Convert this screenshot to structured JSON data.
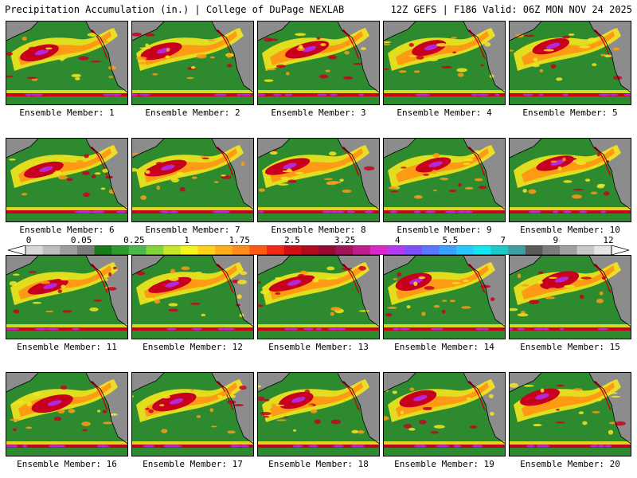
{
  "header": {
    "title": "Precipitation Accumulation (in.) | College of DuPage NEXLAB",
    "run_info": "12Z GEFS | F186 Valid: 06Z MON NOV 24 2025"
  },
  "members": [
    {
      "label": "Ensemble Member: 1"
    },
    {
      "label": "Ensemble Member: 2"
    },
    {
      "label": "Ensemble Member: 3"
    },
    {
      "label": "Ensemble Member: 4"
    },
    {
      "label": "Ensemble Member: 5"
    },
    {
      "label": "Ensemble Member: 6"
    },
    {
      "label": "Ensemble Member: 7"
    },
    {
      "label": "Ensemble Member: 8"
    },
    {
      "label": "Ensemble Member: 9"
    },
    {
      "label": "Ensemble Member: 10"
    },
    {
      "label": "Ensemble Member: 11"
    },
    {
      "label": "Ensemble Member: 12"
    },
    {
      "label": "Ensemble Member: 13"
    },
    {
      "label": "Ensemble Member: 14"
    },
    {
      "label": "Ensemble Member: 15"
    },
    {
      "label": "Ensemble Member: 16"
    },
    {
      "label": "Ensemble Member: 17"
    },
    {
      "label": "Ensemble Member: 18"
    },
    {
      "label": "Ensemble Member: 19"
    },
    {
      "label": "Ensemble Member: 20"
    }
  ],
  "colorbar": {
    "tick_labels": [
      "0",
      "0.05",
      "0.25",
      "1",
      "1.75",
      "2.5",
      "3.25",
      "4",
      "5.5",
      "7",
      "9",
      "12"
    ],
    "colors": [
      "#d8d8d8",
      "#bdbdbd",
      "#9e9e9e",
      "#7c7c7c",
      "#1a7a1a",
      "#2e9a2e",
      "#4cb84c",
      "#82d43a",
      "#c8e628",
      "#f5f51e",
      "#ffd21a",
      "#ffae1a",
      "#ff8c1a",
      "#ff5a14",
      "#f02814",
      "#d20f14",
      "#b40a1e",
      "#960a32",
      "#a0145a",
      "#c01e8c",
      "#dc28c8",
      "#b43cf0",
      "#7c50ff",
      "#5a78ff",
      "#3ca0ff",
      "#28c8ff",
      "#14e6f0",
      "#1ec8c8",
      "#3ca0a0",
      "#5a5a5a",
      "#7c7c7c",
      "#a0a0a0",
      "#c8c8c8",
      "#e6e6e6"
    ]
  },
  "palette": {
    "ocean_base": "#2e8a2e",
    "land": "#8c8c8c",
    "heavy": "#c8001e",
    "moderate": "#ff9a14",
    "light": "#f5e61e",
    "extreme": "#b428dc"
  }
}
